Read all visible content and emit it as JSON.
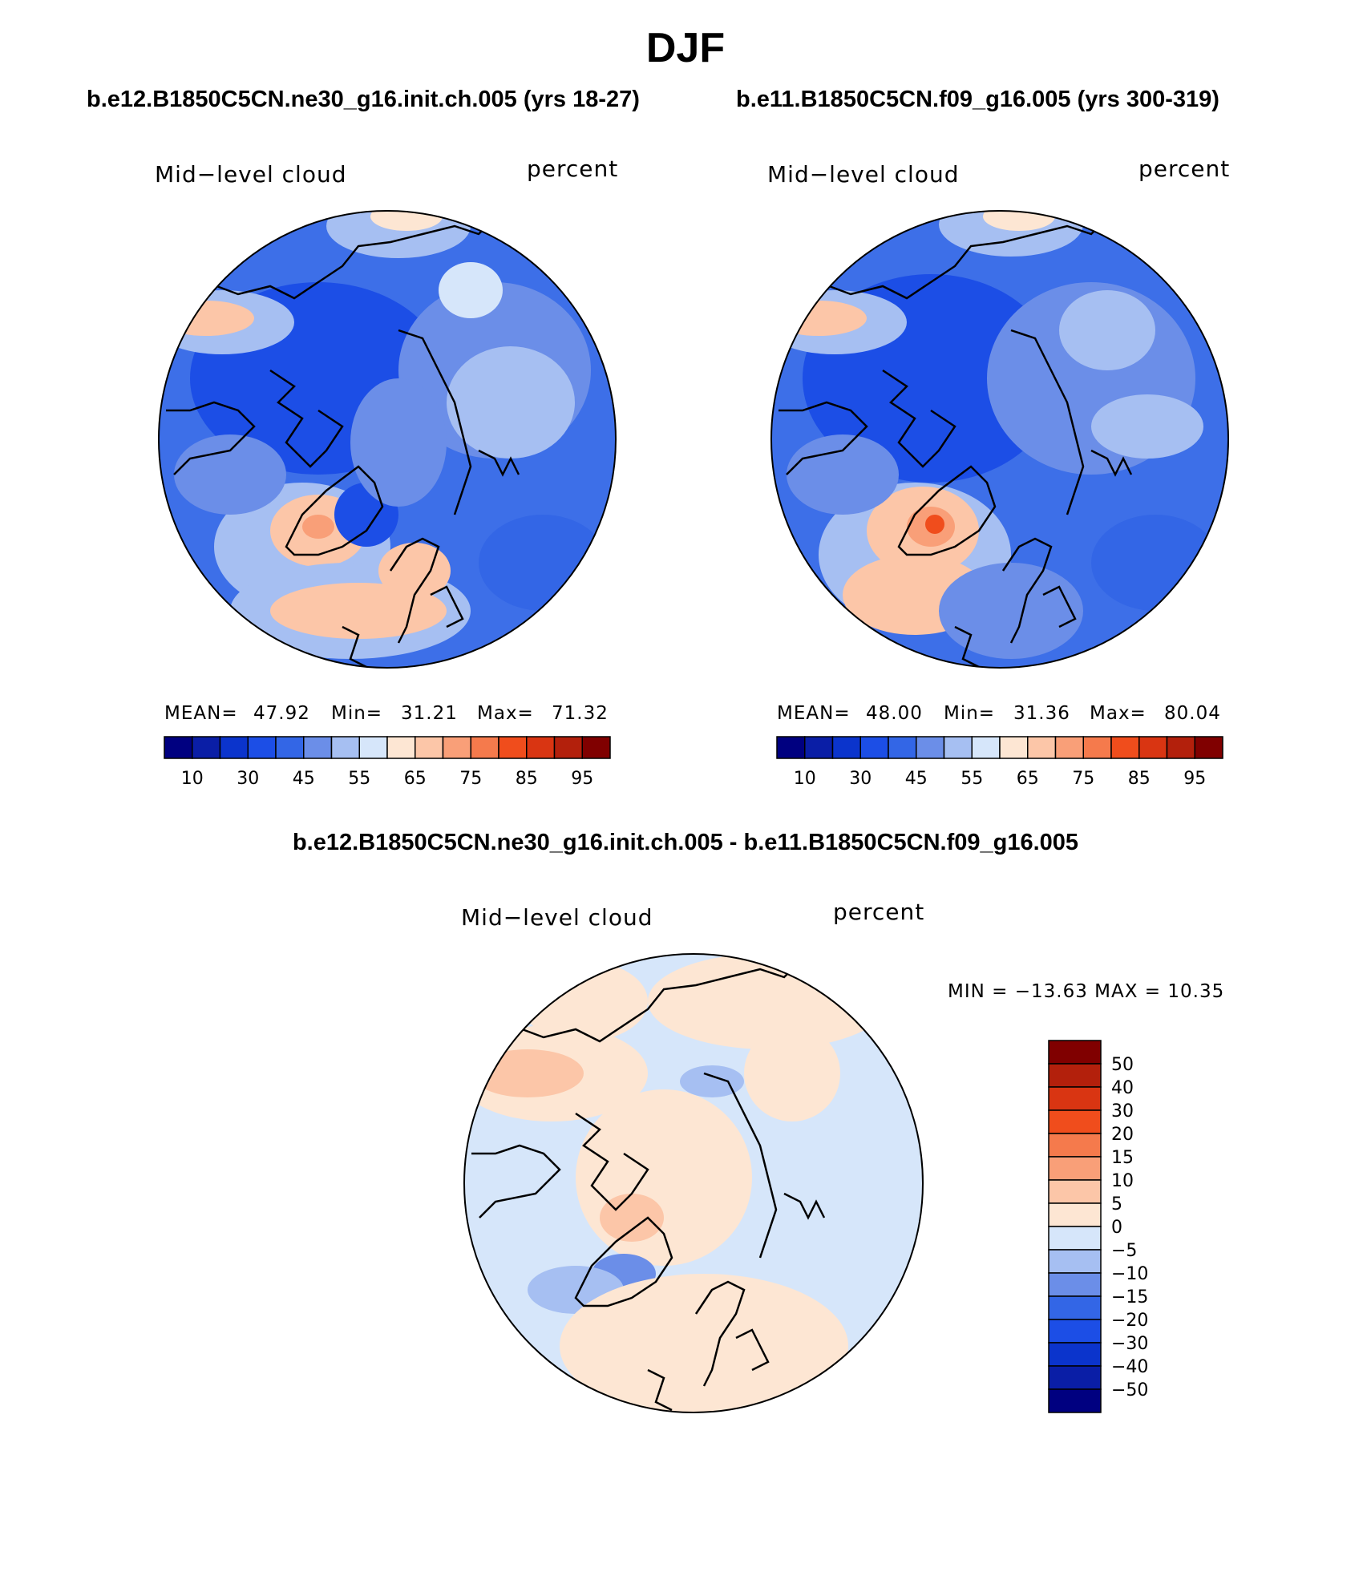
{
  "title": "DJF",
  "panels": [
    {
      "case_title": "b.e12.B1850C5CN.ne30_g16.init.ch.005 (yrs 18-27)",
      "variable": "Mid−level cloud",
      "units": "percent",
      "mean_label": "MEAN=",
      "mean": "47.92",
      "min_label": "Min=",
      "min": "31.21",
      "max_label": "Max=",
      "max": "71.32"
    },
    {
      "case_title": "b.e11.B1850C5CN.f09_g16.005 (yrs 300-319)",
      "variable": "Mid−level cloud",
      "units": "percent",
      "mean_label": "MEAN=",
      "mean": "48.00",
      "min_label": "Min=",
      "min": "31.36",
      "max_label": "Max=",
      "max": "80.04"
    }
  ],
  "difference": {
    "title": "b.e12.B1850C5CN.ne30_g16.init.ch.005 - b.e11.B1850C5CN.f09_g16.005",
    "variable": "Mid−level cloud",
    "units": "percent",
    "minmax_text": "MIN = −13.63  MAX =   10.35"
  },
  "chart_data": [
    {
      "type": "heatmap",
      "projection": "north polar stereographic",
      "title": "b.e12.B1850C5CN.ne30_g16.init.ch.005 (yrs 18-27)",
      "field": "Mid-level cloud",
      "units": "percent",
      "mean": 47.92,
      "min": 31.21,
      "max": 71.32,
      "colorbar_levels": [
        5,
        10,
        20,
        30,
        40,
        45,
        50,
        55,
        60,
        65,
        70,
        75,
        80,
        85,
        90,
        95
      ],
      "colorbar_tick_labels": [
        "10",
        "30",
        "45",
        "55",
        "65",
        "75",
        "85",
        "95"
      ]
    },
    {
      "type": "heatmap",
      "projection": "north polar stereographic",
      "title": "b.e11.B1850C5CN.f09_g16.005 (yrs 300-319)",
      "field": "Mid-level cloud",
      "units": "percent",
      "mean": 48.0,
      "min": 31.36,
      "max": 80.04,
      "colorbar_levels": [
        5,
        10,
        20,
        30,
        40,
        45,
        50,
        55,
        60,
        65,
        70,
        75,
        80,
        85,
        90,
        95
      ],
      "colorbar_tick_labels": [
        "10",
        "30",
        "45",
        "55",
        "65",
        "75",
        "85",
        "95"
      ]
    },
    {
      "type": "heatmap",
      "projection": "north polar stereographic",
      "title": "b.e12.B1850C5CN.ne30_g16.init.ch.005 - b.e11.B1850C5CN.f09_g16.005",
      "field": "Mid-level cloud",
      "units": "percent",
      "min": -13.63,
      "max": 10.35,
      "colorbar_labels_top_to_bottom": [
        "50",
        "40",
        "30",
        "20",
        "15",
        "10",
        "5",
        "0",
        "−5",
        "−10",
        "−15",
        "−20",
        "−30",
        "−40",
        "−50"
      ]
    }
  ],
  "palettes": {
    "full": [
      "#000080",
      "#0a1ea6",
      "#0b34cc",
      "#1c4ee6",
      "#3366e6",
      "#6b8ee8",
      "#a6bff2",
      "#d6e6fa",
      "#fde6d3",
      "#fcc6a8",
      "#f99f78",
      "#f57a4c",
      "#f04d1c",
      "#d93512",
      "#b3200c",
      "#800000"
    ],
    "diff": [
      "#800000",
      "#b3200c",
      "#d93512",
      "#f04d1c",
      "#f57a4c",
      "#f99f78",
      "#fcc6a8",
      "#fde6d3",
      "#d6e6fa",
      "#a6bff2",
      "#6b8ee8",
      "#3366e6",
      "#1c4ee6",
      "#0b34cc",
      "#0a1ea6",
      "#000080"
    ]
  }
}
